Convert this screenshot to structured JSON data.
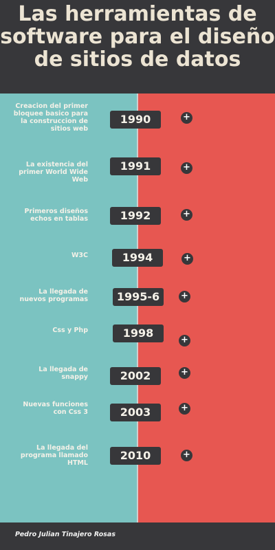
{
  "title": "Las herramientas de software para el diseño de sitios de datos",
  "author": "Pedro Julian Tinajero Rosas",
  "events": [
    {
      "description": "Creacion del primer\nbloquee basico para\nla construccion de\nsitios web",
      "year": "1990"
    },
    {
      "description": "La existencia del\nprimer World Wide\nWeb",
      "year": "1991"
    },
    {
      "description": "Primeros diseños\nechos en tablas",
      "year": "1992"
    },
    {
      "description": "W3C",
      "year": "1994"
    },
    {
      "description": "La llegada de\nnuevos programas",
      "year": "1995-6"
    },
    {
      "description": "Css y Php",
      "year": "1998"
    },
    {
      "description": "La llegada de\nsnappy",
      "year": "2002"
    },
    {
      "description": "Nuevas funciones\ncon Css 3",
      "year": "2003"
    },
    {
      "description": "La llegada del\nprograma llamado\nHTML",
      "year": "2010"
    }
  ],
  "plus_symbol": "+",
  "colors": {
    "left": "#7bc3c1",
    "right": "#e75751",
    "dark": "#37373a",
    "cream": "#ece4d3"
  }
}
